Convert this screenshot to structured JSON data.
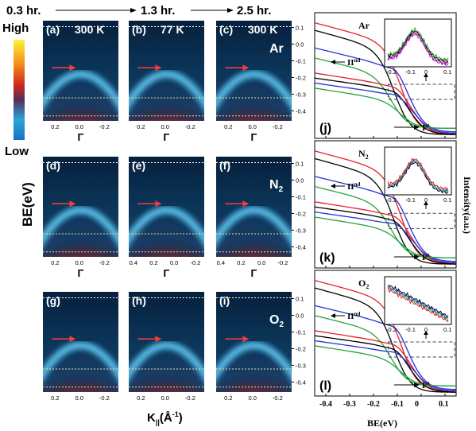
{
  "time_labels": [
    "0.3 hr.",
    "1.3 hr.",
    "2.5 hr."
  ],
  "colorbar": {
    "high": "High",
    "low": "Low"
  },
  "left_axis_label": "BE(eV)",
  "bottom_axis_label": "K",
  "bottom_axis_sub": "||",
  "bottom_axis_unit": "(Å",
  "bottom_axis_exp": "-1",
  "bottom_axis_close": ")",
  "gamma": "Γ",
  "panels": [
    {
      "tag": "(a)",
      "temp": "300 K"
    },
    {
      "tag": "(b)",
      "temp": "77 K"
    },
    {
      "tag": "(c)",
      "temp": "300 K"
    },
    {
      "tag": "(d)",
      "temp": ""
    },
    {
      "tag": "(e)",
      "temp": ""
    },
    {
      "tag": "(f)",
      "temp": ""
    },
    {
      "tag": "(g)",
      "temp": ""
    },
    {
      "tag": "(h)",
      "temp": ""
    },
    {
      "tag": "(i)",
      "temp": ""
    }
  ],
  "gas_rows": [
    {
      "base": "Ar",
      "sub": ""
    },
    {
      "base": "N",
      "sub": "2"
    },
    {
      "base": "O",
      "sub": "2"
    }
  ],
  "map_y_ticks": [
    "0.1",
    "0.0",
    "-0.1",
    "-0.2",
    "-0.3",
    "-0.4"
  ],
  "map_x_ticks_row1": [
    "0.2",
    "0.0",
    "-0.2"
  ],
  "map_x_ticks_row2": [
    "0.4",
    "0.2",
    "0.0",
    "-0.2"
  ],
  "right_panels": [
    {
      "tag": "(j)",
      "gas_base": "Ar",
      "gas_sub": ""
    },
    {
      "tag": "(k)",
      "gas_base": "N",
      "gas_sub": "2"
    },
    {
      "tag": "(l)",
      "gas_base": "O",
      "gas_sub": "2"
    }
  ],
  "marker_I": "I",
  "marker_I_sup": "st",
  "marker_II": "II",
  "marker_II_sup": "nd",
  "right_x_ticks": [
    "-0.4",
    "-0.3",
    "-0.2",
    "-0.1",
    "0",
    "0.1"
  ],
  "right_x_label": "BE(eV)",
  "inset_x_ticks": [
    "-0.2",
    "-0.1",
    "0",
    "0.1"
  ],
  "right_y_label": "Intensity(a.u.)",
  "colors": {
    "black": "#000000",
    "red": "#e8202a",
    "blue": "#2433d6",
    "green": "#27a23a",
    "magenta": "#e020e0",
    "map_bg": "#0a2440",
    "map_cyan": "#4cb8e6",
    "map_red": "#d2281c",
    "map_yellow": "#ffe43a"
  }
}
